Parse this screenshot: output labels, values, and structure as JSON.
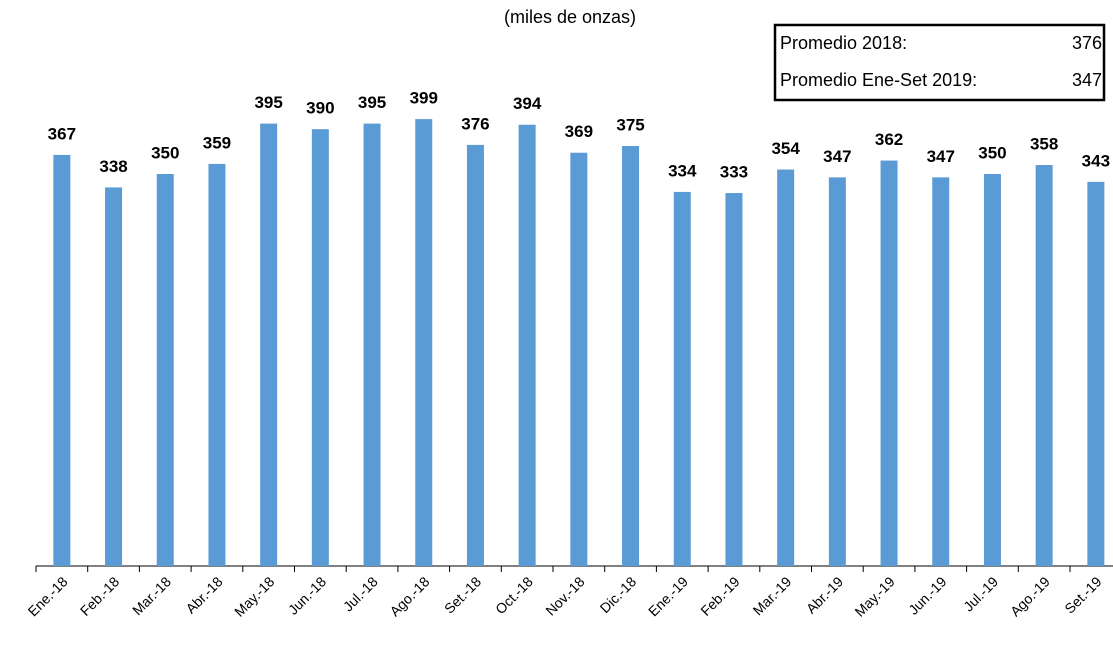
{
  "chart_data": {
    "type": "bar",
    "subtitle": "(miles de onzas)",
    "categories": [
      "Ene.-18",
      "Feb.-18",
      "Mar.-18",
      "Abr.-18",
      "May.-18",
      "Jun.-18",
      "Jul.-18",
      "Ago.-18",
      "Set.-18",
      "Oct.-18",
      "Nov.-18",
      "Dic.-18",
      "Ene.-19",
      "Feb.-19",
      "Mar.-19",
      "Abr.-19",
      "May.-19",
      "Jun.-19",
      "Jul.-19",
      "Ago.-19",
      "Set.-19"
    ],
    "values": [
      367,
      338,
      350,
      359,
      395,
      390,
      395,
      399,
      376,
      394,
      369,
      375,
      334,
      333,
      354,
      347,
      362,
      347,
      350,
      358,
      343
    ],
    "color": "#5b9bd5",
    "ylim": [
      0,
      450
    ],
    "averages": [
      {
        "label": "Promedio 2018:",
        "value": 376
      },
      {
        "label": "Promedio Ene-Set 2019:",
        "value": 347
      }
    ]
  }
}
